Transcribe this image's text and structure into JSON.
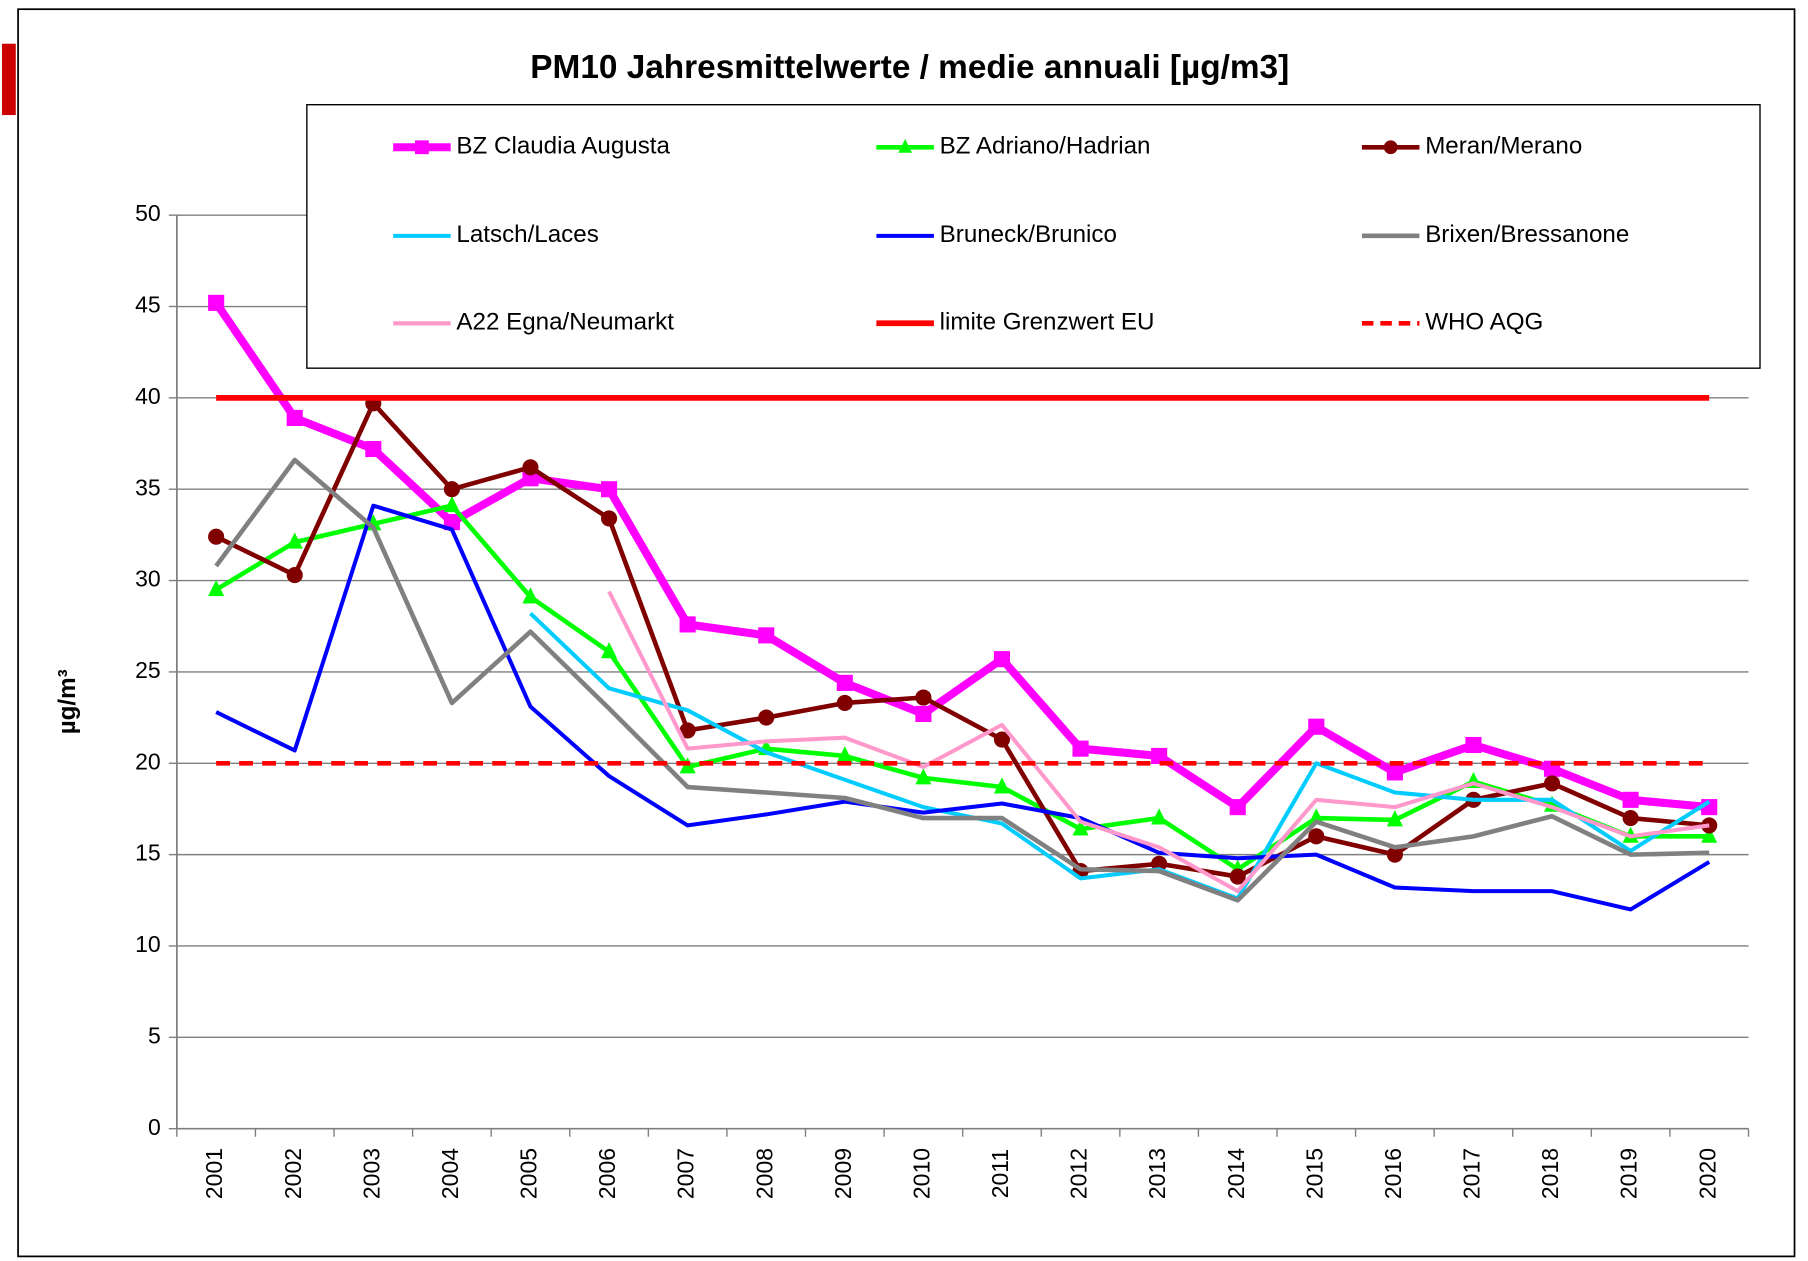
{
  "chart_data": {
    "type": "line",
    "title": "PM10 Jahresmittelwerte / medie annuali [µg/m3]",
    "y_label": "µg/m³",
    "categories": [
      "2001",
      "2002",
      "2003",
      "2004",
      "2005",
      "2006",
      "2007",
      "2008",
      "2009",
      "2010",
      "2011",
      "2012",
      "2013",
      "2014",
      "2015",
      "2016",
      "2017",
      "2018",
      "2019",
      "2020"
    ],
    "ylim": [
      0,
      50
    ],
    "yticks": [
      0,
      5,
      10,
      15,
      20,
      25,
      30,
      35,
      40,
      45,
      50
    ],
    "grid": true,
    "legend": "top",
    "series": [
      {
        "name": "BZ Claudia Augusta",
        "color": "#ff00ff",
        "marker": "square",
        "values": [
          45.2,
          38.9,
          37.2,
          33.2,
          35.6,
          35.0,
          27.6,
          27.0,
          24.4,
          22.7,
          25.7,
          20.8,
          20.4,
          17.6,
          22.0,
          19.5,
          21.0,
          19.7,
          18.0,
          17.6
        ]
      },
      {
        "name": "BZ Adriano/Hadrian",
        "color": "#00ff00",
        "marker": "triangle",
        "values": [
          29.5,
          32.1,
          33.1,
          34.1,
          29.1,
          26.1,
          19.8,
          20.8,
          20.4,
          19.2,
          18.7,
          16.4,
          17.0,
          14.2,
          17.0,
          16.9,
          19.0,
          17.7,
          16.0,
          16.0
        ]
      },
      {
        "name": "Meran/Merano",
        "color": "#800000",
        "marker": "circle",
        "values": [
          32.4,
          30.3,
          39.7,
          35.0,
          36.2,
          33.4,
          21.8,
          22.5,
          23.3,
          23.6,
          21.3,
          14.1,
          14.5,
          13.8,
          16.0,
          15.0,
          18.0,
          18.9,
          17.0,
          16.6
        ]
      },
      {
        "name": "Latsch/Laces",
        "color": "#00ccff",
        "values": [
          null,
          null,
          null,
          null,
          28.2,
          24.1,
          22.9,
          20.6,
          19.1,
          17.6,
          16.7,
          13.7,
          14.2,
          12.6,
          20.0,
          18.4,
          18.0,
          18.0,
          15.2,
          17.9
        ]
      },
      {
        "name": "Bruneck/Brunico",
        "color": "#0000ff",
        "values": [
          22.8,
          20.7,
          34.1,
          32.8,
          23.1,
          19.3,
          16.6,
          17.2,
          17.9,
          17.3,
          17.8,
          17.0,
          15.1,
          14.8,
          15.0,
          13.2,
          13.0,
          13.0,
          12.0,
          14.6
        ]
      },
      {
        "name": "Brixen/Bressanone",
        "color": "#808080",
        "values": [
          30.8,
          36.6,
          32.9,
          23.3,
          27.2,
          23.0,
          18.7,
          18.4,
          18.1,
          17.0,
          17.0,
          14.2,
          14.1,
          12.5,
          16.8,
          15.4,
          16.0,
          17.1,
          15.0,
          15.1
        ]
      },
      {
        "name": "A22 Egna/Neumarkt",
        "color": "#ff99cc",
        "values": [
          null,
          null,
          null,
          null,
          null,
          29.4,
          20.8,
          21.2,
          21.4,
          19.8,
          22.1,
          16.8,
          15.4,
          13.0,
          18.0,
          17.6,
          18.9,
          17.6,
          16.0,
          16.6
        ]
      },
      {
        "name": "limite Grenzwert EU",
        "color": "#ff0000",
        "values": [
          40,
          40,
          40,
          40,
          40,
          40,
          40,
          40,
          40,
          40,
          40,
          40,
          40,
          40,
          40,
          40,
          40,
          40,
          40,
          40
        ]
      },
      {
        "name": "WHO AQG",
        "color": "#ff0000",
        "dashed": true,
        "values": [
          20,
          20,
          20,
          20,
          20,
          20,
          20,
          20,
          20,
          20,
          20,
          20,
          20,
          20,
          20,
          20,
          20,
          20,
          20,
          20
        ]
      }
    ]
  }
}
